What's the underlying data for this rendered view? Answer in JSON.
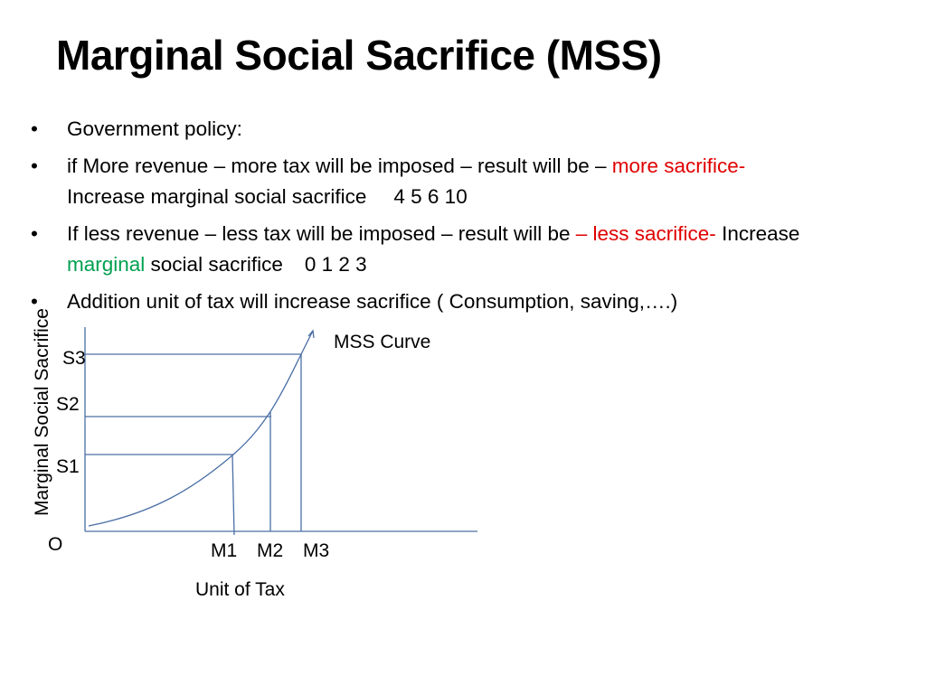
{
  "slide": {
    "title": "Marginal Social Sacrifice (MSS)",
    "bullets": {
      "b1": "Government policy:",
      "b2_part1": "if More revenue – more tax will be imposed – result will be – ",
      "b2_red": "more sacrifice-",
      "b2_part2": "Increase marginal social sacrifice",
      "b2_nums": "4 5 6 10",
      "b3_part1": "If less revenue – less tax will be imposed – result will be ",
      "b3_red": "– less sacrifice-",
      "b3_part2": " Increase ",
      "b3_green": "marginal",
      "b3_part3": " social sacrifice",
      "b3_nums": "0 1  2  3",
      "b4": "Addition unit of tax will increase sacrifice ( Consumption, saving,….)"
    },
    "colors": {
      "highlight_red": "#e00000",
      "highlight_green": "#00a050",
      "graph_line": "#4a6fa5"
    }
  },
  "graph": {
    "curve_label": "MSS Curve",
    "y_axis_title": "Marginal Social Sacrifice",
    "x_axis_title": "Unit of Tax",
    "origin_label": "O",
    "y_levels": [
      "S1",
      "S2",
      "S3"
    ],
    "x_levels": [
      "M1",
      "M2",
      "M3"
    ]
  }
}
